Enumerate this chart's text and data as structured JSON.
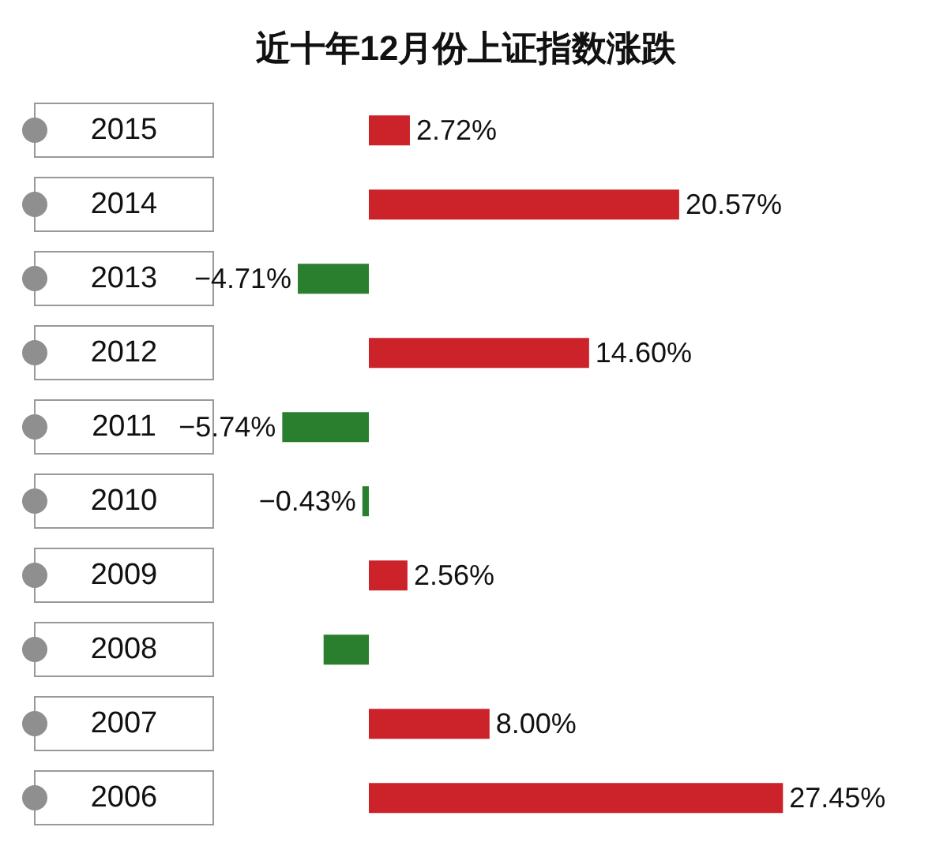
{
  "chart_data": {
    "type": "bar",
    "orientation": "horizontal",
    "title": "近十年12月份上证指数涨跌",
    "categories": [
      "2015",
      "2014",
      "2013",
      "2012",
      "2011",
      "2010",
      "2009",
      "2008",
      "2007",
      "2006"
    ],
    "values": [
      2.72,
      20.57,
      -4.71,
      14.6,
      -5.74,
      -0.43,
      2.56,
      -3,
      8,
      27.45
    ],
    "value_labels": [
      "2.72%",
      "20.57%",
      "−4.71%",
      "14.60%",
      "−5.74%",
      "−0.43%",
      "2.56%",
      null,
      "8.00%",
      "27.45%"
    ],
    "colors": [
      "#cc2229",
      "#cc2229",
      "#2a7f2e",
      "#cc2229",
      "#2a7f2e",
      "#2a7f2e",
      "#cc2229",
      "#2a7f2e",
      "#cc2229",
      "#cc2229"
    ]
  }
}
